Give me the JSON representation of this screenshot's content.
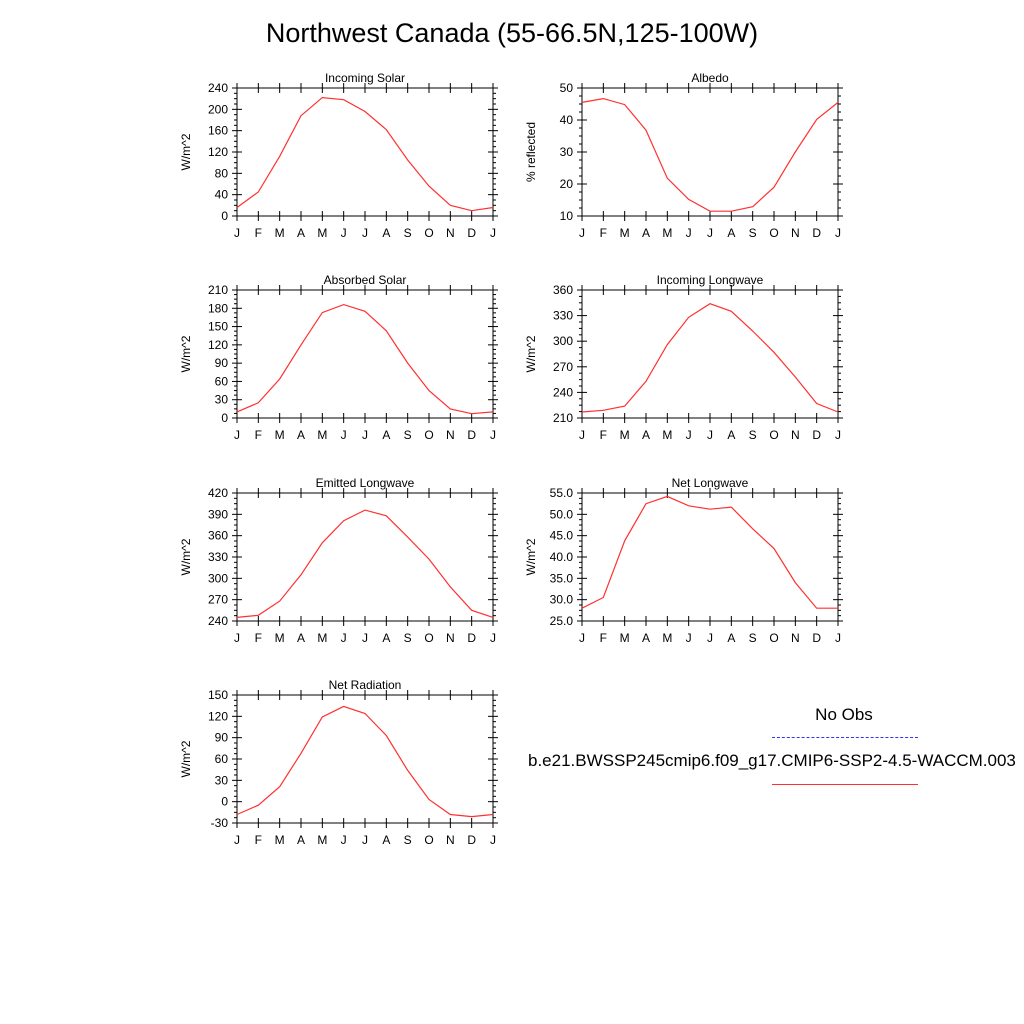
{
  "page": {
    "title": "Northwest Canada (55-66.5N,125-100W)"
  },
  "legend": {
    "obs_label": "No Obs",
    "obs_color": "#3232ff",
    "case_label": "b.e21.BWSSP245cmip6.f09_g17.CMIP6-SSP2-4.5-WACCM.003",
    "case_color": "#ff3030"
  },
  "chart_data": [
    {
      "type": "line",
      "title": "Incoming Solar",
      "xlabel": "",
      "ylabel": "W/m^2",
      "categories": [
        "J",
        "F",
        "M",
        "A",
        "M",
        "J",
        "J",
        "A",
        "S",
        "O",
        "N",
        "D",
        "J"
      ],
      "ylim": [
        0,
        240
      ],
      "yticks": [
        0,
        40,
        80,
        120,
        160,
        200,
        240
      ],
      "ytick_labels": [
        "0",
        "40",
        "80",
        "120",
        "160",
        "200",
        "240"
      ],
      "grid": false,
      "series": [
        {
          "values": [
            16,
            45,
            112,
            188,
            222,
            218,
            196,
            162,
            105,
            56,
            20,
            10,
            16
          ],
          "color": "#ff3030"
        }
      ]
    },
    {
      "type": "line",
      "title": "Albedo",
      "xlabel": "",
      "ylabel": "% reflected",
      "categories": [
        "J",
        "F",
        "M",
        "A",
        "M",
        "J",
        "J",
        "A",
        "S",
        "O",
        "N",
        "D",
        "J"
      ],
      "ylim": [
        10,
        50
      ],
      "yticks": [
        10,
        20,
        30,
        40,
        50
      ],
      "ytick_labels": [
        "10",
        "20",
        "30",
        "40",
        "50"
      ],
      "grid": false,
      "series": [
        {
          "values": [
            45.5,
            46.7,
            44.8,
            36.8,
            21.8,
            15.2,
            11.5,
            11.5,
            12.9,
            19.0,
            30.0,
            40.2,
            45.5
          ],
          "color": "#ff3030"
        }
      ]
    },
    {
      "type": "line",
      "title": "Absorbed Solar",
      "xlabel": "",
      "ylabel": "W/m^2",
      "categories": [
        "J",
        "F",
        "M",
        "A",
        "M",
        "J",
        "J",
        "A",
        "S",
        "O",
        "N",
        "D",
        "J"
      ],
      "ylim": [
        0,
        210
      ],
      "yticks": [
        0,
        30,
        60,
        90,
        120,
        150,
        180,
        210
      ],
      "ytick_labels": [
        "0",
        "30",
        "60",
        "90",
        "120",
        "150",
        "180",
        "210"
      ],
      "grid": false,
      "series": [
        {
          "values": [
            10,
            25,
            64,
            120,
            173,
            186,
            175,
            143,
            90,
            45,
            15,
            7,
            10
          ],
          "color": "#ff3030"
        }
      ]
    },
    {
      "type": "line",
      "title": "Incoming Longwave",
      "xlabel": "",
      "ylabel": "W/m^2",
      "categories": [
        "J",
        "F",
        "M",
        "A",
        "M",
        "J",
        "J",
        "A",
        "S",
        "O",
        "N",
        "D",
        "J"
      ],
      "ylim": [
        210,
        360
      ],
      "yticks": [
        210,
        240,
        270,
        300,
        330,
        360
      ],
      "ytick_labels": [
        "210",
        "240",
        "270",
        "300",
        "330",
        "360"
      ],
      "grid": false,
      "series": [
        {
          "values": [
            217,
            219,
            224,
            253,
            296,
            328,
            344,
            335,
            312,
            287,
            258,
            227,
            217
          ],
          "color": "#ff3030"
        }
      ]
    },
    {
      "type": "line",
      "title": "Emitted Longwave",
      "xlabel": "",
      "ylabel": "W/m^2",
      "categories": [
        "J",
        "F",
        "M",
        "A",
        "M",
        "J",
        "J",
        "A",
        "S",
        "O",
        "N",
        "D",
        "J"
      ],
      "ylim": [
        240,
        420
      ],
      "yticks": [
        240,
        270,
        300,
        330,
        360,
        390,
        420
      ],
      "ytick_labels": [
        "240",
        "270",
        "300",
        "330",
        "360",
        "390",
        "420"
      ],
      "grid": false,
      "series": [
        {
          "values": [
            245,
            248,
            268,
            305,
            350,
            381,
            396,
            388,
            358,
            327,
            288,
            255,
            245
          ],
          "color": "#ff3030"
        }
      ]
    },
    {
      "type": "line",
      "title": "Net Longwave",
      "xlabel": "",
      "ylabel": "W/m^2",
      "categories": [
        "J",
        "F",
        "M",
        "A",
        "M",
        "J",
        "J",
        "A",
        "S",
        "O",
        "N",
        "D",
        "J"
      ],
      "ylim": [
        25,
        55
      ],
      "yticks": [
        25,
        30,
        35,
        40,
        45,
        50,
        55
      ],
      "ytick_labels": [
        "25.0",
        "30.0",
        "35.0",
        "40.0",
        "45.0",
        "50.0",
        "55.0"
      ],
      "grid": false,
      "series": [
        {
          "values": [
            28.0,
            30.5,
            43.8,
            52.5,
            54.2,
            52.0,
            51.2,
            51.7,
            46.6,
            42.0,
            34.0,
            28.0,
            28.0
          ],
          "color": "#ff3030"
        }
      ]
    },
    {
      "type": "line",
      "title": "Net Radiation",
      "xlabel": "",
      "ylabel": "W/m^2",
      "categories": [
        "J",
        "F",
        "M",
        "A",
        "M",
        "J",
        "J",
        "A",
        "S",
        "O",
        "N",
        "D",
        "J"
      ],
      "ylim": [
        -30,
        150
      ],
      "yticks": [
        -30,
        0,
        30,
        60,
        90,
        120,
        150
      ],
      "ytick_labels": [
        "-30",
        "0",
        "30",
        "60",
        "90",
        "120",
        "150"
      ],
      "grid": false,
      "series": [
        {
          "values": [
            -18,
            -5,
            21,
            68,
            119,
            134,
            124,
            93,
            44,
            3,
            -18,
            -21,
            -18
          ],
          "color": "#ff3030"
        }
      ]
    }
  ]
}
